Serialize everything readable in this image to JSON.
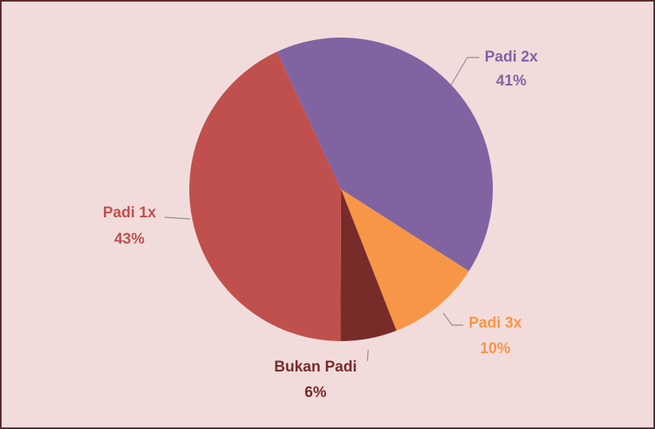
{
  "chart_data": {
    "type": "pie",
    "categories": [
      "Padi 2x",
      "Padi 3x",
      "Bukan Padi",
      "Padi 1x"
    ],
    "values": [
      41,
      10,
      6,
      43
    ],
    "value_labels": [
      "41%",
      "10%",
      "6%",
      "43%"
    ],
    "colors": [
      "#8064a2",
      "#f79646",
      "#772c2a",
      "#c0504d"
    ]
  }
}
